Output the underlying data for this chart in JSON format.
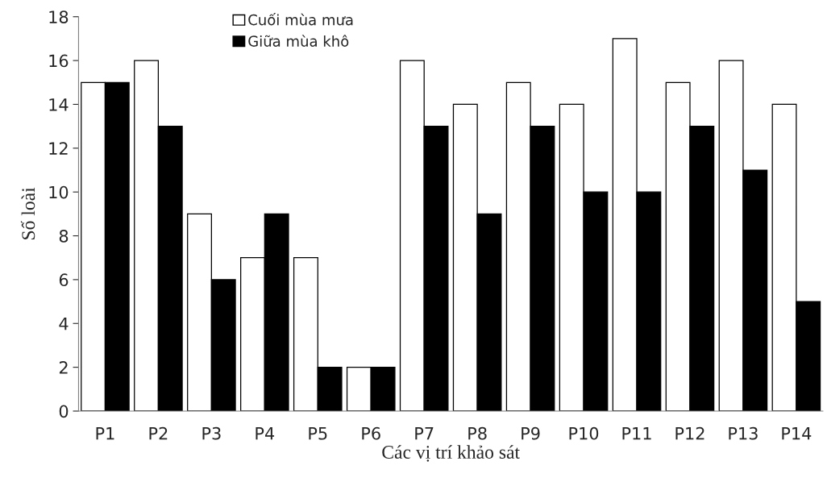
{
  "chart_data": {
    "type": "bar",
    "xlabel": "Các vị trí khảo sát",
    "ylabel": "Số loài",
    "categories": [
      "P1",
      "P2",
      "P3",
      "P4",
      "P5",
      "P6",
      "P7",
      "P8",
      "P9",
      "P10",
      "P11",
      "P12",
      "P13",
      "P14"
    ],
    "series": [
      {
        "name": "Cuối mùa mưa",
        "color": "#ffffff",
        "values": [
          15,
          16,
          9,
          7,
          7,
          2,
          16,
          14,
          15,
          14,
          17,
          15,
          16,
          14
        ]
      },
      {
        "name": "Giữa mùa khô",
        "color": "#000000",
        "values": [
          15,
          13,
          6,
          9,
          2,
          2,
          13,
          9,
          13,
          10,
          10,
          13,
          11,
          5
        ]
      }
    ],
    "ylim": [
      0,
      18
    ],
    "yticks": [
      0,
      2,
      4,
      6,
      8,
      10,
      12,
      14,
      16,
      18
    ],
    "grid": false,
    "legend": "top"
  }
}
